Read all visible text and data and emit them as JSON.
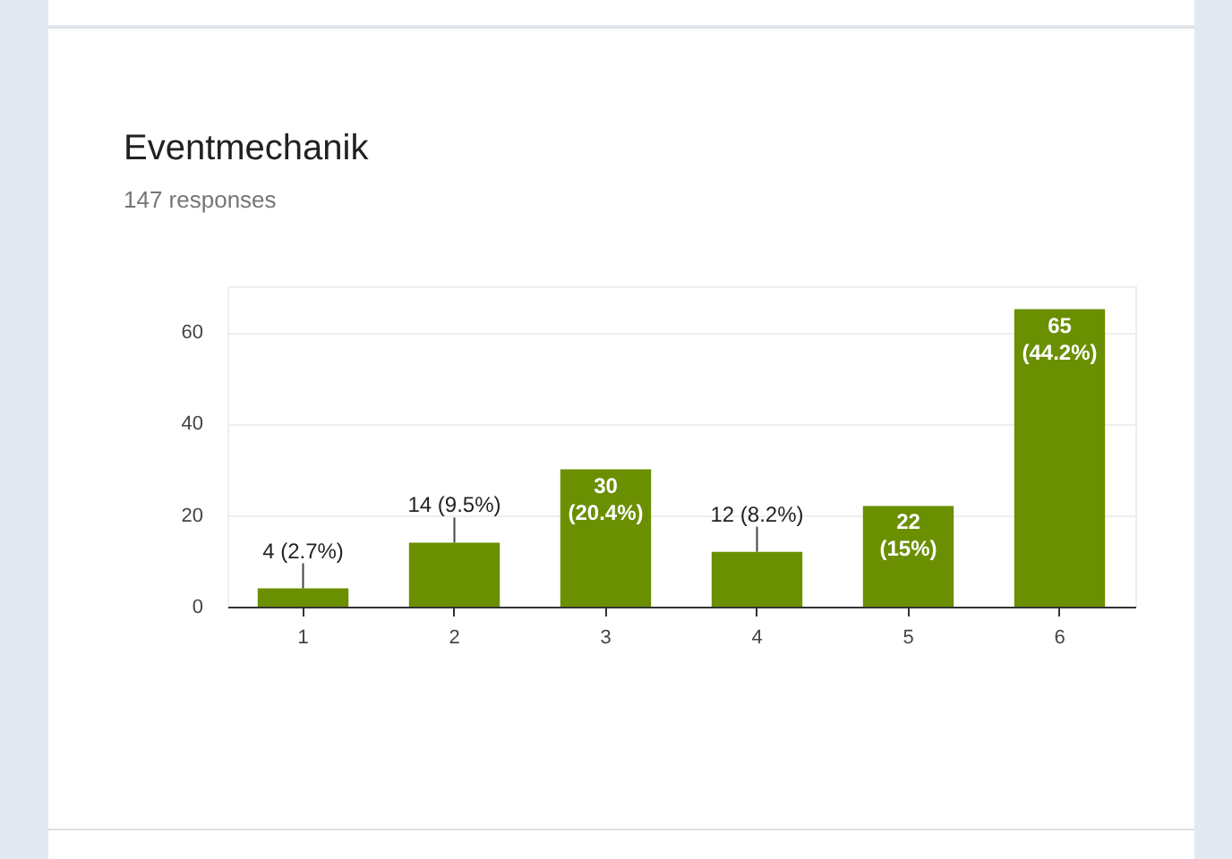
{
  "chart_data": {
    "type": "bar",
    "title": "Eventmechanik",
    "subtitle": "147 responses",
    "categories": [
      "1",
      "2",
      "3",
      "4",
      "5",
      "6"
    ],
    "values": [
      4,
      14,
      30,
      12,
      22,
      65
    ],
    "value_labels": [
      "4 (2.7%)",
      "14 (9.5%)",
      "30 (20.4%)",
      "12 (8.2%)",
      "22 (15%)",
      "65 (44.2%)"
    ],
    "color": "#6a8f00",
    "ylim": [
      0,
      70
    ],
    "yticks": [
      0,
      20,
      40,
      60
    ],
    "grid": "y"
  }
}
